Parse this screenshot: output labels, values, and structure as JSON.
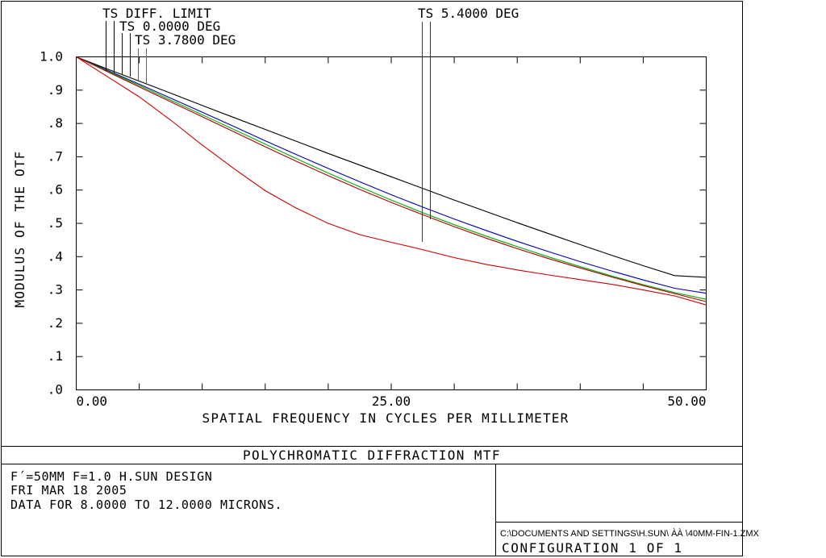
{
  "chart_data": {
    "type": "line",
    "title": "POLYCHROMATIC DIFFRACTION MTF",
    "xlabel": "SPATIAL FREQUENCY IN CYCLES PER MILLIMETER",
    "ylabel": "MODULUS OF THE OTF",
    "xlim": [
      0,
      50
    ],
    "ylim": [
      0,
      1.0
    ],
    "x_ticks": [
      0,
      5,
      10,
      15,
      20,
      25,
      30,
      35,
      40,
      45,
      50
    ],
    "x_tick_labels": [
      "0.00",
      "25.00",
      "50.00"
    ],
    "x_tick_label_values": [
      0,
      25,
      50
    ],
    "y_ticks": [
      0,
      0.1,
      0.2,
      0.3,
      0.4,
      0.5,
      0.6,
      0.7,
      0.8,
      0.9,
      1.0
    ],
    "y_tick_labels": [
      ".0",
      ".1",
      ".2",
      ".3",
      ".4",
      ".5",
      ".6",
      ".7",
      ".8",
      ".9",
      "1.0"
    ],
    "x": [
      0,
      2.5,
      5,
      7.5,
      10,
      12.5,
      15,
      17.5,
      20,
      22.5,
      25,
      27.5,
      30,
      32.5,
      35,
      37.5,
      40,
      42.5,
      45,
      47.5,
      50
    ],
    "series": [
      {
        "name": "TS DIFF. LIMIT",
        "color": "#000000",
        "values": [
          1.0,
          0.963,
          0.927,
          0.891,
          0.854,
          0.818,
          0.782,
          0.746,
          0.71,
          0.675,
          0.64,
          0.605,
          0.57,
          0.536,
          0.502,
          0.469,
          0.436,
          0.404,
          0.373,
          0.343,
          0.338
        ]
      },
      {
        "name": "TS 0.0000 DEG",
        "color": "#0000aa",
        "values": [
          1.0,
          0.959,
          0.918,
          0.876,
          0.834,
          0.791,
          0.748,
          0.706,
          0.665,
          0.625,
          0.586,
          0.549,
          0.513,
          0.479,
          0.446,
          0.415,
          0.385,
          0.357,
          0.33,
          0.305,
          0.29
        ]
      },
      {
        "name": "TS 3.7800 DEG",
        "color": "#00aa00",
        "values": [
          1.0,
          0.957,
          0.914,
          0.87,
          0.826,
          0.782,
          0.738,
          0.694,
          0.651,
          0.61,
          0.57,
          0.532,
          0.496,
          0.462,
          0.43,
          0.399,
          0.37,
          0.342,
          0.316,
          0.292,
          0.272
        ]
      },
      {
        "name": "TS 5.4000 DEG",
        "color": "#aa0000",
        "values": [
          1.0,
          0.955,
          0.91,
          0.865,
          0.82,
          0.775,
          0.73,
          0.686,
          0.643,
          0.602,
          0.563,
          0.526,
          0.49,
          0.456,
          0.424,
          0.394,
          0.366,
          0.339,
          0.313,
          0.289,
          0.265
        ]
      },
      {
        "name": "TS 5.4000 DEG",
        "color": "#cc0000",
        "values": [
          1.0,
          0.94,
          0.88,
          0.81,
          0.735,
          0.665,
          0.598,
          0.545,
          0.5,
          0.466,
          0.443,
          0.421,
          0.397,
          0.377,
          0.36,
          0.345,
          0.331,
          0.317,
          0.3,
          0.282,
          0.255
        ]
      }
    ]
  },
  "legend": {
    "label_diff": "TS DIFF. LIMIT",
    "label_00": "TS 0.0000 DEG",
    "label_378": "TS 3.7800 DEG",
    "label_54": "TS 5.4000 DEG"
  },
  "info": {
    "line1": "F´=50MM F=1.0 H.SUN DESIGN",
    "line2": "FRI MAR 18 2005",
    "line3": "DATA FOR 8.0000 TO 12.0000 MICRONS.",
    "file_path": "C:\\DOCUMENTS AND SETTINGS\\H.SUN\\ ÀÀ \\40MM-FIN-1.ZMX",
    "configuration": "CONFIGURATION  1  OF  1"
  }
}
